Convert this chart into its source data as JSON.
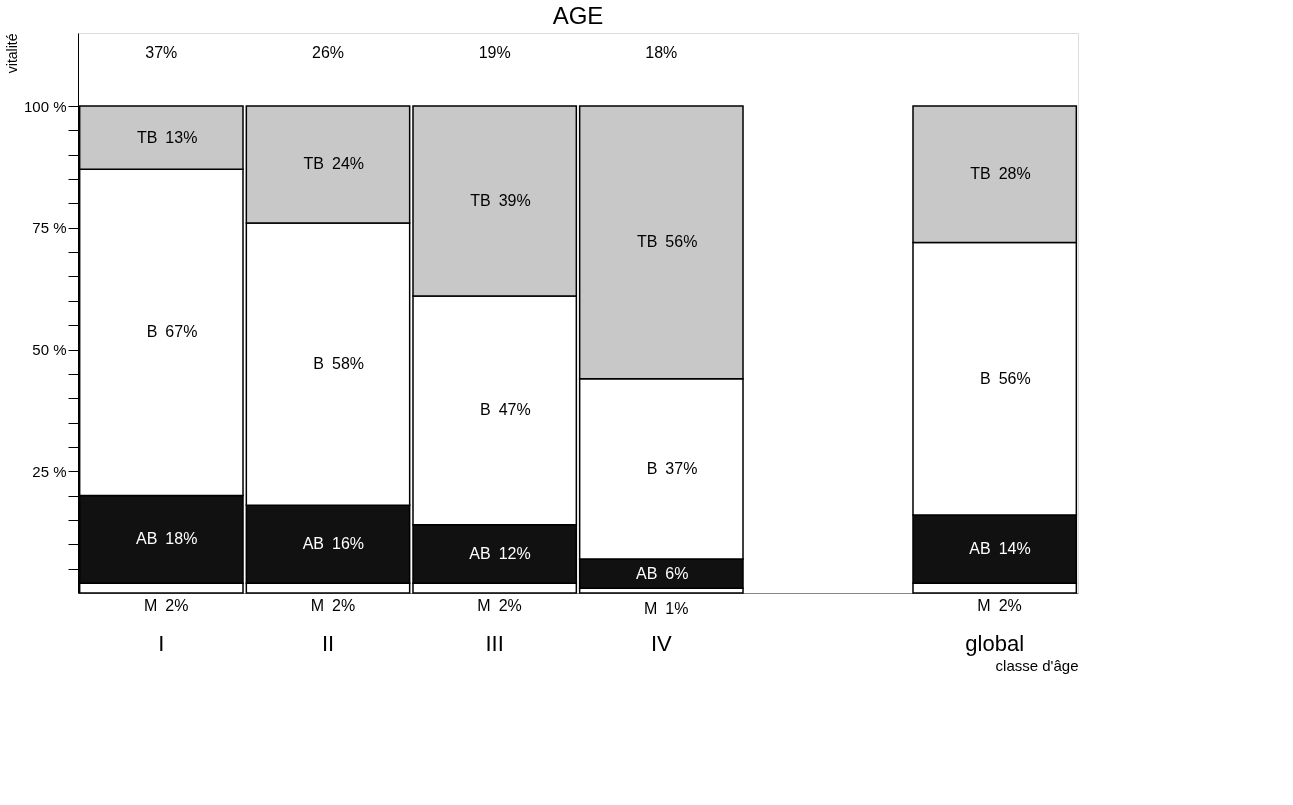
{
  "chart_data": {
    "type": "bar",
    "title": "AGE",
    "xlabel": "classe d'âge",
    "ylabel": "vitalité",
    "stacked": true,
    "categories": [
      "I",
      "II",
      "III",
      "IV",
      null,
      "global"
    ],
    "series": [
      {
        "name": "M",
        "color": "#ffffff",
        "values": [
          2,
          2,
          2,
          1,
          null,
          2
        ],
        "value_labels": [
          "2%",
          "2%",
          "2%",
          "1%",
          null,
          "2%"
        ]
      },
      {
        "name": "AB",
        "color": "#111111",
        "values": [
          18,
          16,
          12,
          6,
          null,
          14
        ],
        "value_labels": [
          "18%",
          "16%",
          "12%",
          "6%",
          null,
          "14%"
        ]
      },
      {
        "name": "B",
        "color": "#ffffff",
        "values": [
          67,
          58,
          47,
          37,
          null,
          56
        ],
        "value_labels": [
          "67%",
          "58%",
          "47%",
          "37%",
          null,
          "56%"
        ]
      },
      {
        "name": "TB",
        "color": "#c8c8c8",
        "values": [
          13,
          24,
          39,
          56,
          null,
          28
        ],
        "value_labels": [
          "13%",
          "24%",
          "39%",
          "56%",
          null,
          "28%"
        ]
      }
    ],
    "ylim": [
      0,
      115
    ],
    "yticks": [
      {
        "value": 5,
        "label": null
      },
      {
        "value": 10,
        "label": null
      },
      {
        "value": 15,
        "label": null
      },
      {
        "value": 20,
        "label": null
      },
      {
        "value": 25,
        "label": "25 %"
      },
      {
        "value": 30,
        "label": null
      },
      {
        "value": 35,
        "label": null
      },
      {
        "value": 40,
        "label": null
      },
      {
        "value": 45,
        "label": null
      },
      {
        "value": 50,
        "label": "50 %"
      },
      {
        "value": 55,
        "label": null
      },
      {
        "value": 60,
        "label": null
      },
      {
        "value": 65,
        "label": null
      },
      {
        "value": 70,
        "label": null
      },
      {
        "value": 75,
        "label": "75 %"
      },
      {
        "value": 80,
        "label": null
      },
      {
        "value": 85,
        "label": null
      },
      {
        "value": 90,
        "label": null
      },
      {
        "value": 95,
        "label": null
      },
      {
        "value": 100,
        "label": "100 %"
      }
    ],
    "annotations": [
      "37%",
      "26%",
      "19%",
      "18%"
    ]
  }
}
